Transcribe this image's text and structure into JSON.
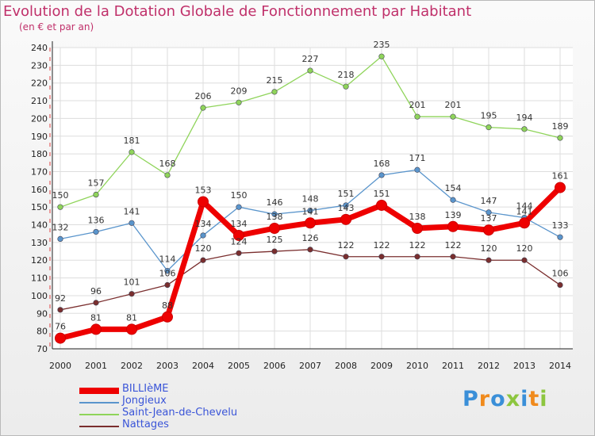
{
  "title": "Evolution de la Dotation Globale de Fonctionnement par Habitant",
  "subtitle": "(en € et par an)",
  "chart_data": {
    "type": "line",
    "x": [
      "2000",
      "2001",
      "2002",
      "2003",
      "2004",
      "2005",
      "2006",
      "2007",
      "2008",
      "2009",
      "2010",
      "2011",
      "2012",
      "2013",
      "2014"
    ],
    "ylim": [
      70,
      240
    ],
    "yticks": [
      70,
      80,
      90,
      100,
      110,
      120,
      130,
      140,
      150,
      160,
      170,
      180,
      190,
      200,
      210,
      220,
      230,
      240
    ],
    "grid": true,
    "legend_position": "bottom-left",
    "series": [
      {
        "name": "BILLIèME",
        "color": "#ee0000",
        "emphasis": true,
        "values": [
          76,
          81,
          81,
          88,
          153,
          134,
          138,
          141,
          143,
          151,
          138,
          139,
          137,
          141,
          161
        ]
      },
      {
        "name": "Jongieux",
        "color": "#5a95cc",
        "values": [
          132,
          136,
          141,
          114,
          134,
          150,
          146,
          148,
          151,
          168,
          171,
          154,
          147,
          144,
          133
        ]
      },
      {
        "name": "Saint-Jean-de-Chevelu",
        "color": "#8fd45a",
        "values": [
          150,
          157,
          181,
          168,
          206,
          209,
          215,
          227,
          218,
          235,
          201,
          201,
          195,
          194,
          189
        ]
      },
      {
        "name": "Nattages",
        "color": "#7a2e2e",
        "values": [
          92,
          96,
          101,
          106,
          120,
          124,
          125,
          126,
          122,
          122,
          122,
          122,
          120,
          120,
          106
        ]
      }
    ]
  },
  "logo": {
    "text": "Proxiti",
    "colors": [
      "#3a8fd8",
      "#f08a1c",
      "#3a8fd8",
      "#8dc63f",
      "#3a8fd8",
      "#f08a1c",
      "#8dc63f"
    ]
  }
}
